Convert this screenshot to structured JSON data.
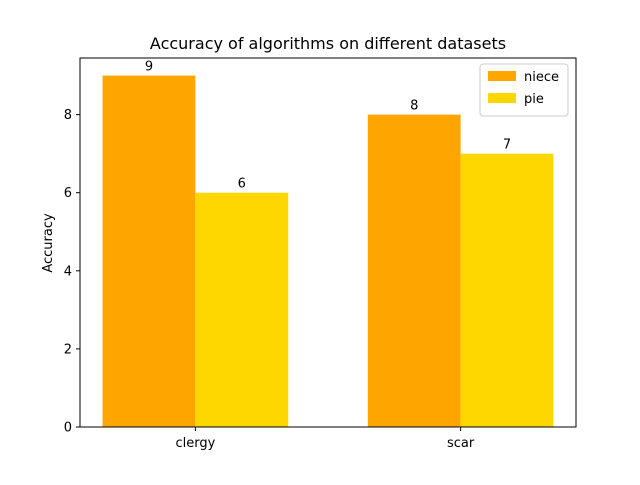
{
  "chart_data": {
    "type": "bar",
    "title": "Accuracy of algorithms on different datasets",
    "xlabel": "",
    "ylabel": "Accuracy",
    "categories": [
      "clergy",
      "scar"
    ],
    "series": [
      {
        "name": "niece",
        "values": [
          9,
          8
        ],
        "color": "#FFA500"
      },
      {
        "name": "pie",
        "values": [
          6,
          7
        ],
        "color": "#FFD700"
      }
    ],
    "ylim": [
      0,
      9.45
    ],
    "yticks": [
      0,
      2,
      4,
      6,
      8
    ],
    "grid": false,
    "legend_position": "top-right"
  }
}
